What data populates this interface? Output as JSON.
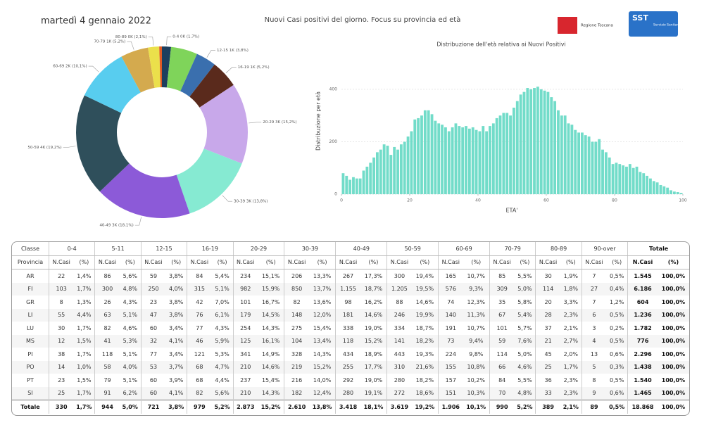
{
  "header": {
    "date": "martedì 4 gennaio 2022",
    "title": "Nuovi Casi positivi del giorno. Focus su provincia ed età",
    "logo_left": "Regione Toscana",
    "logo_right_short": "SST",
    "logo_right_long": "Servizio Sanitario della Toscana"
  },
  "chart_data": [
    {
      "type": "donut",
      "values": [
        1.7,
        5.0,
        3.8,
        5.2,
        15.2,
        13.8,
        18.1,
        19.2,
        10.1,
        5.2,
        2.1,
        0.5
      ],
      "value_labels": [
        "0-4 0K (1,7%)",
        null,
        "12-15 1K (3,8%)",
        "16-19 1K (5,2%)",
        "20-29 3K (15,2%)",
        "30-39 3K (13,8%)",
        "40-49 3K (18,1%)",
        "50-59 4K (19,2%)",
        "60-69 2K (10,1%)",
        "70-79 1K (5,2%)",
        "80-89 0K (2,1%)",
        null
      ],
      "colors": [
        "#1d3f5e",
        "#7fd45a",
        "#3a6fae",
        "#5a2a1c",
        "#c8a8ea",
        "#86ead2",
        "#8c5ad8",
        "#2f4f5b",
        "#58cdef",
        "#d4aa4e",
        "#ebe04b",
        "#e05a24"
      ]
    },
    {
      "type": "histogram",
      "title": "Distribuzione dell'età relativa ai Nuovi Positivi",
      "xlabel": "ETA'",
      "ylabel": "Distribuzione per età",
      "color": "#72dcc9",
      "bins": [
        0,
        1,
        2,
        3,
        4,
        5,
        6,
        7,
        8,
        9,
        10,
        11,
        12,
        13,
        14,
        15,
        16,
        17,
        18,
        19,
        20,
        21,
        22,
        23,
        24,
        25,
        26,
        27,
        28,
        29,
        30,
        31,
        32,
        33,
        34,
        35,
        36,
        37,
        38,
        39,
        40,
        41,
        42,
        43,
        44,
        45,
        46,
        47,
        48,
        49,
        50,
        51,
        52,
        53,
        54,
        55,
        56,
        57,
        58,
        59,
        60,
        61,
        62,
        63,
        64,
        65,
        66,
        67,
        68,
        69,
        70,
        71,
        72,
        73,
        74,
        75,
        76,
        77,
        78,
        79,
        80,
        81,
        82,
        83,
        84,
        85,
        86,
        87,
        88,
        89,
        90,
        91,
        92,
        93,
        94,
        95,
        96,
        97,
        98,
        99,
        100
      ],
      "values": [
        80,
        70,
        55,
        65,
        60,
        60,
        90,
        105,
        120,
        140,
        160,
        170,
        190,
        185,
        150,
        180,
        170,
        190,
        200,
        220,
        240,
        285,
        290,
        300,
        320,
        320,
        305,
        280,
        270,
        265,
        255,
        240,
        255,
        270,
        260,
        255,
        260,
        250,
        255,
        245,
        240,
        260,
        240,
        260,
        270,
        290,
        300,
        310,
        310,
        300,
        330,
        355,
        380,
        390,
        405,
        400,
        405,
        410,
        400,
        395,
        390,
        370,
        355,
        320,
        300,
        300,
        270,
        265,
        245,
        235,
        235,
        225,
        220,
        200,
        200,
        210,
        170,
        160,
        140,
        115,
        120,
        115,
        110,
        105,
        115,
        100,
        105,
        85,
        80,
        70,
        60,
        50,
        45,
        35,
        30,
        25,
        15,
        10,
        8,
        5
      ],
      "xlim": [
        0,
        100
      ],
      "xticks": [
        0,
        20,
        40,
        60,
        80,
        100
      ],
      "ylim": [
        0,
        440
      ],
      "yticks": [
        0,
        200,
        400
      ],
      "grid": true
    }
  ],
  "table": {
    "groups": [
      "Classe",
      "0-4",
      "5-11",
      "12-15",
      "16-19",
      "20-29",
      "30-39",
      "40-49",
      "50-59",
      "60-69",
      "70-79",
      "80-89",
      "90-over",
      "Totale"
    ],
    "subheader": [
      "Provincia",
      "N.Casi",
      "(%)",
      "N.Casi",
      "(%)",
      "N.Casi",
      "(%)",
      "N.Casi",
      "(%)",
      "N.Casi",
      "(%)",
      "N.Casi",
      "(%)",
      "N.Casi",
      "(%)",
      "N.Casi",
      "(%)",
      "N.Casi",
      "(%)",
      "N.Casi",
      "(%)",
      "N.Casi",
      "(%)",
      "N.Casi",
      "(%)",
      "N.Casi",
      "(%)"
    ],
    "rows": [
      [
        "AR",
        "22",
        "1,4%",
        "86",
        "5,6%",
        "59",
        "3,8%",
        "84",
        "5,4%",
        "234",
        "15,1%",
        "206",
        "13,3%",
        "267",
        "17,3%",
        "300",
        "19,4%",
        "165",
        "10,7%",
        "85",
        "5,5%",
        "30",
        "1,9%",
        "7",
        "0,5%",
        "1.545",
        "100,0%"
      ],
      [
        "FI",
        "103",
        "1,7%",
        "300",
        "4,8%",
        "250",
        "4,0%",
        "315",
        "5,1%",
        "982",
        "15,9%",
        "850",
        "13,7%",
        "1.155",
        "18,7%",
        "1.205",
        "19,5%",
        "576",
        "9,3%",
        "309",
        "5,0%",
        "114",
        "1,8%",
        "27",
        "0,4%",
        "6.186",
        "100,0%"
      ],
      [
        "GR",
        "8",
        "1,3%",
        "26",
        "4,3%",
        "23",
        "3,8%",
        "42",
        "7,0%",
        "101",
        "16,7%",
        "82",
        "13,6%",
        "98",
        "16,2%",
        "88",
        "14,6%",
        "74",
        "12,3%",
        "35",
        "5,8%",
        "20",
        "3,3%",
        "7",
        "1,2%",
        "604",
        "100,0%"
      ],
      [
        "LI",
        "55",
        "4,4%",
        "63",
        "5,1%",
        "47",
        "3,8%",
        "76",
        "6,1%",
        "179",
        "14,5%",
        "148",
        "12,0%",
        "181",
        "14,6%",
        "246",
        "19,9%",
        "140",
        "11,3%",
        "67",
        "5,4%",
        "28",
        "2,3%",
        "6",
        "0,5%",
        "1.236",
        "100,0%"
      ],
      [
        "LU",
        "30",
        "1,7%",
        "82",
        "4,6%",
        "60",
        "3,4%",
        "77",
        "4,3%",
        "254",
        "14,3%",
        "275",
        "15,4%",
        "338",
        "19,0%",
        "334",
        "18,7%",
        "191",
        "10,7%",
        "101",
        "5,7%",
        "37",
        "2,1%",
        "3",
        "0,2%",
        "1.782",
        "100,0%"
      ],
      [
        "MS",
        "12",
        "1,5%",
        "41",
        "5,3%",
        "32",
        "4,1%",
        "46",
        "5,9%",
        "125",
        "16,1%",
        "104",
        "13,4%",
        "118",
        "15,2%",
        "141",
        "18,2%",
        "73",
        "9,4%",
        "59",
        "7,6%",
        "21",
        "2,7%",
        "4",
        "0,5%",
        "776",
        "100,0%"
      ],
      [
        "PI",
        "38",
        "1,7%",
        "118",
        "5,1%",
        "77",
        "3,4%",
        "121",
        "5,3%",
        "341",
        "14,9%",
        "328",
        "14,3%",
        "434",
        "18,9%",
        "443",
        "19,3%",
        "224",
        "9,8%",
        "114",
        "5,0%",
        "45",
        "2,0%",
        "13",
        "0,6%",
        "2.296",
        "100,0%"
      ],
      [
        "PO",
        "14",
        "1,0%",
        "58",
        "4,0%",
        "53",
        "3,7%",
        "68",
        "4,7%",
        "210",
        "14,6%",
        "219",
        "15,2%",
        "255",
        "17,7%",
        "310",
        "21,6%",
        "155",
        "10,8%",
        "66",
        "4,6%",
        "25",
        "1,7%",
        "5",
        "0,3%",
        "1.438",
        "100,0%"
      ],
      [
        "PT",
        "23",
        "1,5%",
        "79",
        "5,1%",
        "60",
        "3,9%",
        "68",
        "4,4%",
        "237",
        "15,4%",
        "216",
        "14,0%",
        "292",
        "19,0%",
        "280",
        "18,2%",
        "157",
        "10,2%",
        "84",
        "5,5%",
        "36",
        "2,3%",
        "8",
        "0,5%",
        "1.540",
        "100,0%"
      ],
      [
        "SI",
        "25",
        "1,7%",
        "91",
        "6,2%",
        "60",
        "4,1%",
        "82",
        "5,6%",
        "210",
        "14,3%",
        "182",
        "12,4%",
        "280",
        "19,1%",
        "272",
        "18,6%",
        "151",
        "10,3%",
        "70",
        "4,8%",
        "33",
        "2,3%",
        "9",
        "0,6%",
        "1.465",
        "100,0%"
      ],
      [
        "Totale",
        "330",
        "1,7%",
        "944",
        "5,0%",
        "721",
        "3,8%",
        "979",
        "5,2%",
        "2.873",
        "15,2%",
        "2.610",
        "13,8%",
        "3.418",
        "18,1%",
        "3.619",
        "19,2%",
        "1.906",
        "10,1%",
        "990",
        "5,2%",
        "389",
        "2,1%",
        "89",
        "0,5%",
        "18.868",
        "100,0%"
      ]
    ]
  }
}
